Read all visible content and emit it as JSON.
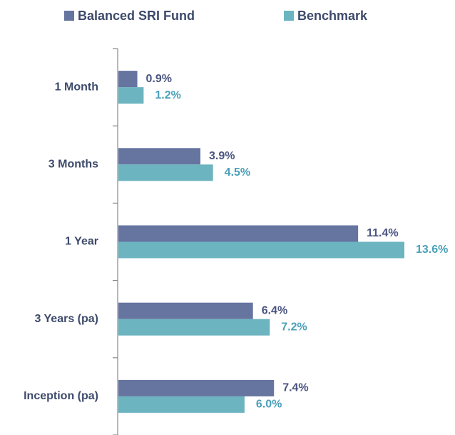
{
  "chart_data": {
    "type": "bar",
    "orientation": "horizontal",
    "categories": [
      "1 Month",
      "3 Months",
      "1 Year",
      "3 Years (pa)",
      "Inception (pa)"
    ],
    "series": [
      {
        "name": "Balanced SRI Fund",
        "color": "#6674a0",
        "values": [
          0.9,
          3.9,
          11.4,
          6.4,
          7.4
        ],
        "value_labels": [
          "0.9%",
          "3.9%",
          "11.4%",
          "6.4%",
          "7.4%"
        ]
      },
      {
        "name": "Benchmark",
        "color": "#6cb4c0",
        "values": [
          1.2,
          4.5,
          13.6,
          7.2,
          6.0
        ],
        "value_labels": [
          "1.2%",
          "4.5%",
          "13.6%",
          "7.2%",
          "6.0%"
        ]
      }
    ],
    "legend": "top"
  }
}
